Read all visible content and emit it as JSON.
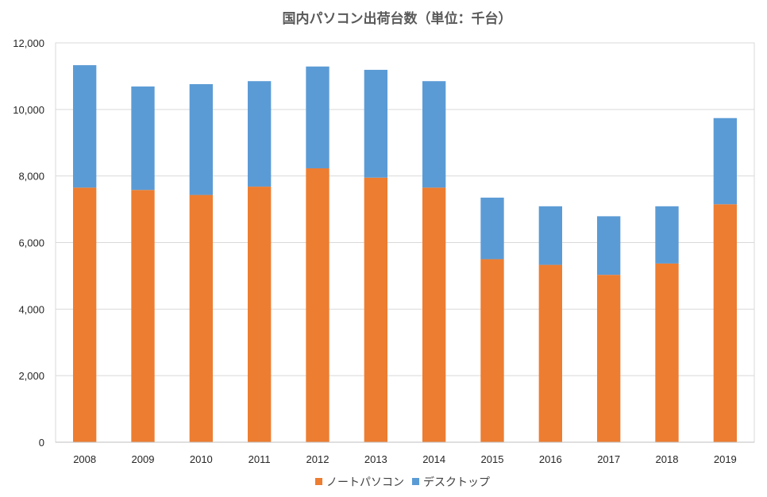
{
  "chart_data": {
    "type": "bar",
    "stacked": true,
    "title": "国内パソコン出荷台数（単位：千台）",
    "xlabel": "",
    "ylabel": "",
    "categories": [
      "2008",
      "2009",
      "2010",
      "2011",
      "2012",
      "2013",
      "2014",
      "2015",
      "2016",
      "2017",
      "2018",
      "2019"
    ],
    "series": [
      {
        "name": "ノートパソコン",
        "color": "#ED7D31",
        "values": [
          7650,
          7580,
          7430,
          7680,
          8230,
          7950,
          7650,
          5500,
          5330,
          5030,
          5370,
          7150
        ]
      },
      {
        "name": "デスクトップ",
        "color": "#5B9BD5",
        "values": [
          3680,
          3110,
          3330,
          3170,
          3060,
          3240,
          3200,
          1850,
          1760,
          1760,
          1720,
          2590
        ]
      }
    ],
    "ylim": [
      0,
      12000
    ],
    "yticks": [
      "0",
      "2,000",
      "4,000",
      "6,000",
      "8,000",
      "10,000",
      "12,000"
    ],
    "ytick_values": [
      0,
      2000,
      4000,
      6000,
      8000,
      10000,
      12000
    ],
    "grid": true,
    "legend_position": "bottom"
  }
}
